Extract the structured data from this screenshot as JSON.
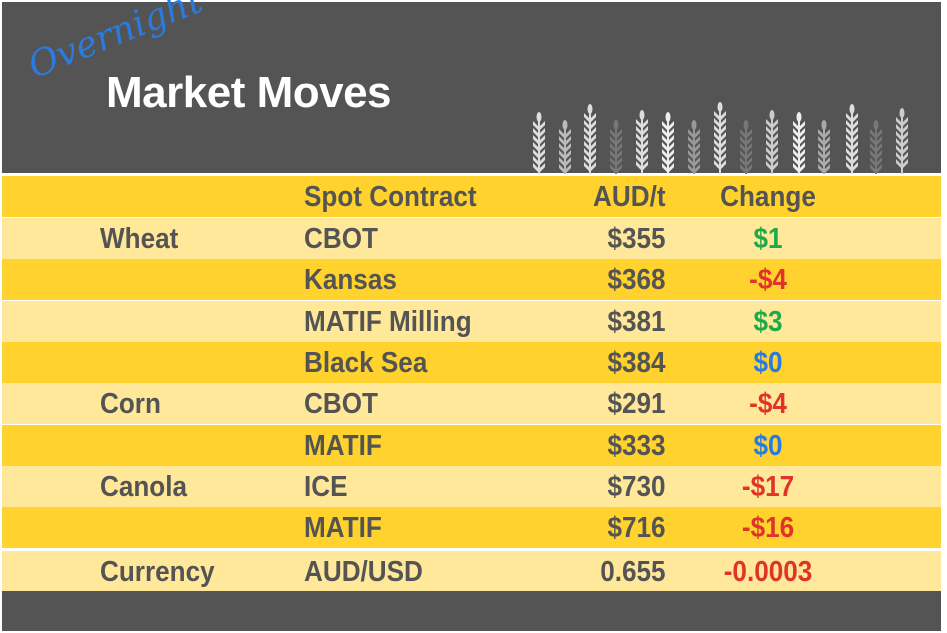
{
  "header": {
    "script_label": "Overnight",
    "title": "Market Moves"
  },
  "colors": {
    "dark": "#545454",
    "yellow": "#FFD22E",
    "light": "#FFE89A",
    "up": "#1faa4a",
    "down": "#e0332a",
    "flat": "#2a7be0"
  },
  "table": {
    "columns": [
      "",
      "Spot Contract",
      "AUD/t",
      "Change"
    ],
    "rows": [
      {
        "commodity": "Wheat",
        "contract": "CBOT",
        "price": "$355",
        "change": "$1",
        "dir": "up"
      },
      {
        "commodity": "",
        "contract": "Kansas",
        "price": "$368",
        "change": "-$4",
        "dir": "down"
      },
      {
        "commodity": "",
        "contract": "MATIF Milling",
        "price": "$381",
        "change": "$3",
        "dir": "up"
      },
      {
        "commodity": "",
        "contract": "Black Sea",
        "price": "$384",
        "change": "$0",
        "dir": "flat"
      },
      {
        "commodity": "Corn",
        "contract": "CBOT",
        "price": "$291",
        "change": "-$4",
        "dir": "down"
      },
      {
        "commodity": "",
        "contract": "MATIF",
        "price": "$333",
        "change": "$0",
        "dir": "flat"
      },
      {
        "commodity": "Canola",
        "contract": "ICE",
        "price": "$730",
        "change": "-$17",
        "dir": "down"
      },
      {
        "commodity": "",
        "contract": "MATIF",
        "price": "$716",
        "change": "-$16",
        "dir": "down"
      },
      {
        "commodity": "Currency",
        "contract": "AUD/USD",
        "price": "0.655",
        "change": "-0.0003",
        "dir": "down"
      }
    ]
  }
}
